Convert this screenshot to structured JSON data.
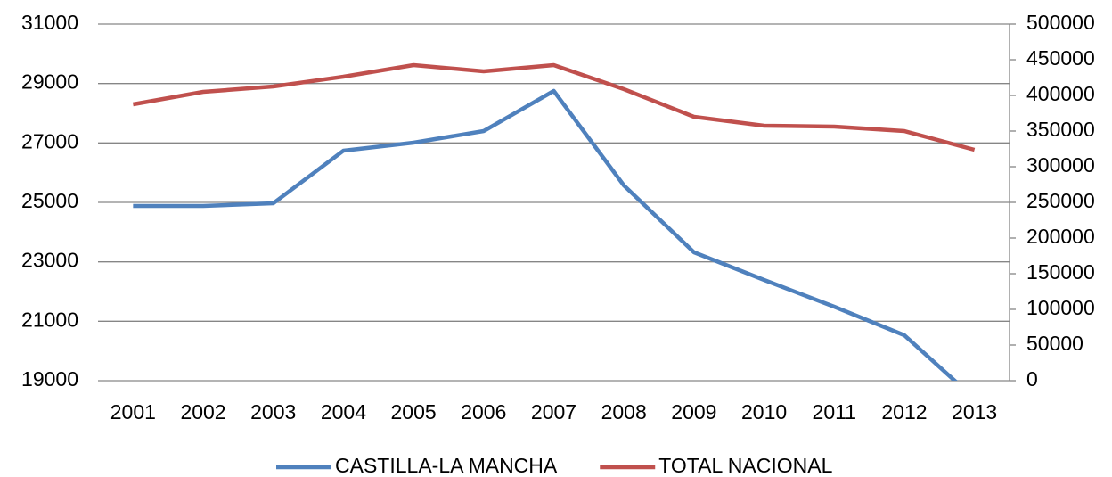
{
  "chart_data": {
    "type": "line",
    "categories": [
      "2001",
      "2002",
      "2003",
      "2004",
      "2005",
      "2006",
      "2007",
      "2008",
      "2009",
      "2010",
      "2011",
      "2012",
      "2013"
    ],
    "series": [
      {
        "name": "CASTILLA-LA MANCHA",
        "color": "#4f81bd",
        "values": [
          24880,
          24880,
          24970,
          26740,
          27010,
          27400,
          28750,
          25570,
          23320,
          22390,
          21490,
          20530,
          18400
        ]
      },
      {
        "name": "TOTAL NACIONAL",
        "color": "#c0504d",
        "axis": "y2",
        "values": [
          387500,
          405000,
          412500,
          426250,
          442500,
          433750,
          442500,
          408750,
          370000,
          357500,
          356250,
          350000,
          323750
        ]
      }
    ],
    "ylim": [
      19000,
      31000
    ],
    "yticks": [
      19000,
      21000,
      23000,
      25000,
      27000,
      29000,
      31000
    ],
    "y2lim": [
      0,
      500000
    ],
    "y2ticks": [
      0,
      50000,
      100000,
      150000,
      200000,
      250000,
      300000,
      350000,
      400000,
      450000,
      500000
    ],
    "grid": true,
    "legend": "bottom"
  }
}
